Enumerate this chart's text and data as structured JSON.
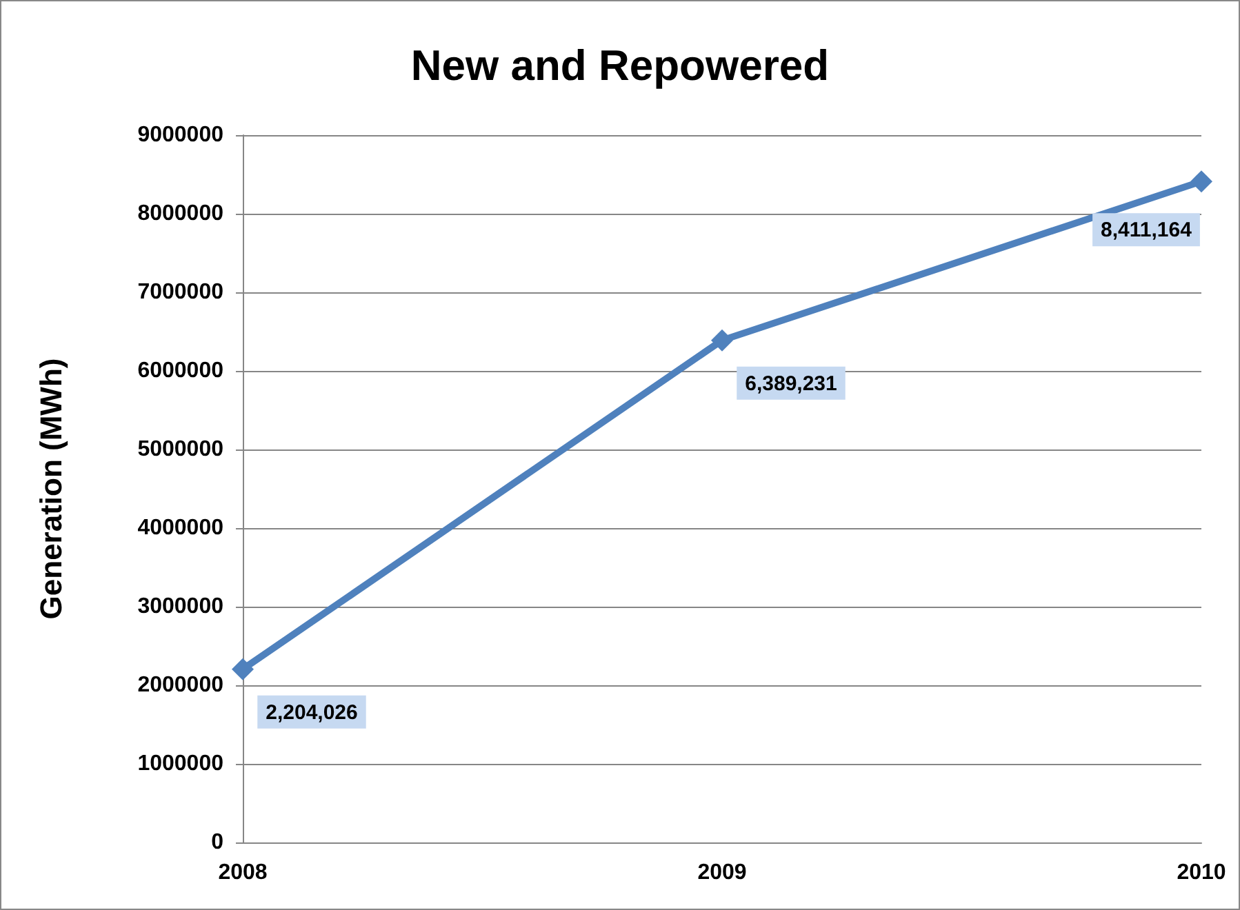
{
  "chart_data": {
    "type": "line",
    "title": "New and Repowered",
    "ylabel": "Generation (MWh)",
    "categories": [
      "2008",
      "2009",
      "2010"
    ],
    "series": [
      {
        "color": "#4f81bd",
        "values": [
          2204026,
          6389231,
          8411164
        ],
        "value_labels": [
          "2,204,026",
          "6,389,231",
          "8,411,164"
        ]
      }
    ],
    "ylim": [
      0,
      9000000
    ],
    "yticks": [
      0,
      1000000,
      2000000,
      3000000,
      4000000,
      5000000,
      6000000,
      7000000,
      8000000,
      9000000
    ],
    "grid": "y",
    "marker": "diamond",
    "line_style": "solid"
  }
}
